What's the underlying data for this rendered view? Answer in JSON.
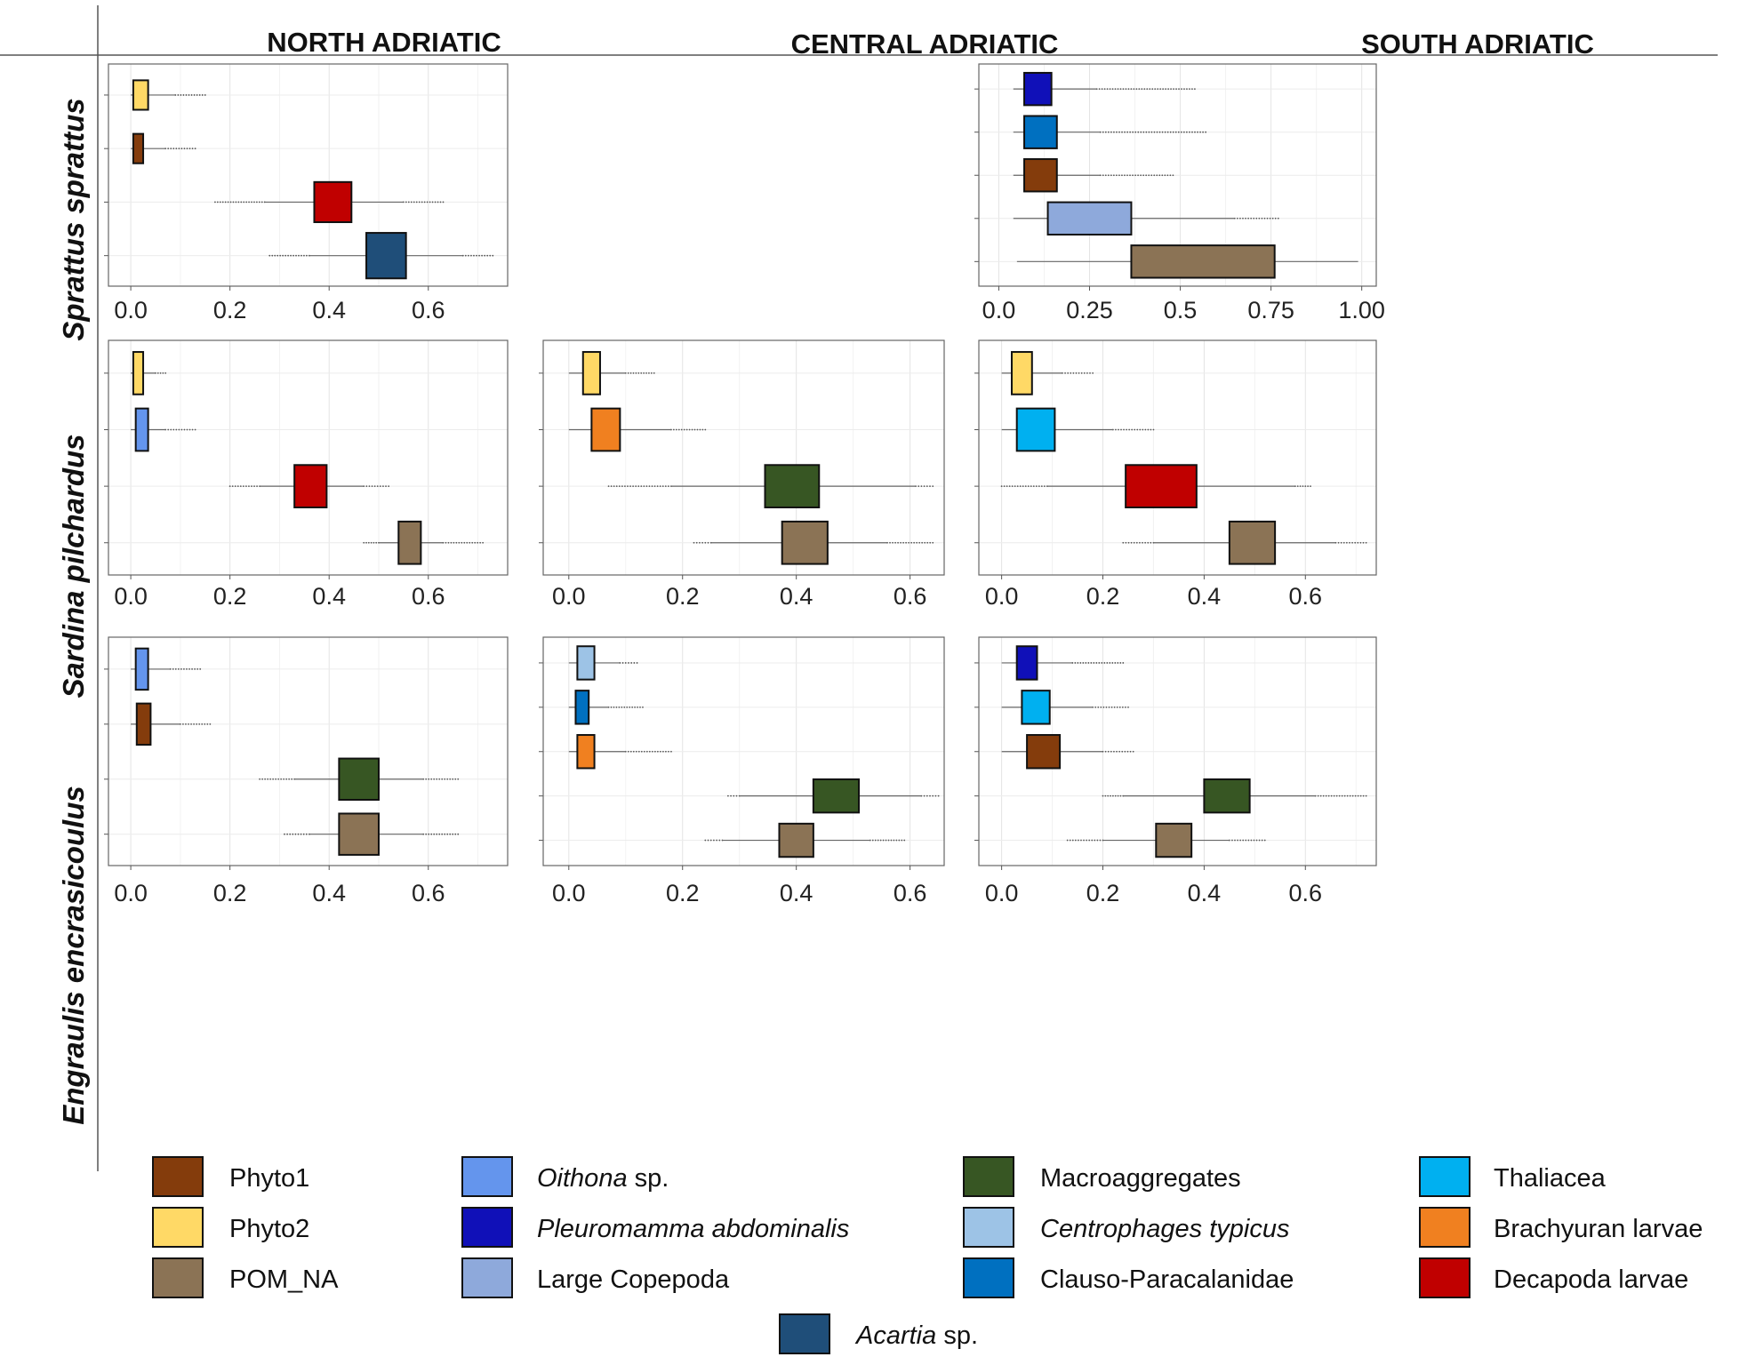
{
  "column_headers": [
    "NORTH ADRIATIC",
    "CENTRAL ADRIATIC",
    "SOUTH ADRIATIC"
  ],
  "row_labels": [
    "Sprattus sprattus",
    "Sardina pilchardus",
    "Engraulis encrasicoulus"
  ],
  "colors": {
    "Phyto1": "#843C0C",
    "Phyto2": "#FFD966",
    "POM_NA": "#8B7355",
    "Oithona": "#6495ED",
    "Pleuromamma": "#1010B8",
    "LargeCopepoda": "#8EA9DB",
    "Macroaggregates": "#375623",
    "Centrophages": "#9DC3E6",
    "Clauso": "#0070C0",
    "Thaliacea": "#00B0F0",
    "Brachyuran": "#F08020",
    "Decapoda": "#C00000",
    "Acartia": "#1F4E79"
  },
  "legend": [
    {
      "key": "Phyto1",
      "parts": [
        {
          "t": "Phyto1",
          "i": false
        }
      ]
    },
    {
      "key": "Phyto2",
      "parts": [
        {
          "t": "Phyto2",
          "i": false
        }
      ]
    },
    {
      "key": "POM_NA",
      "parts": [
        {
          "t": "POM_NA",
          "i": false
        }
      ]
    },
    {
      "key": "Oithona",
      "parts": [
        {
          "t": "Oithona",
          "i": true
        },
        {
          "t": " sp.",
          "i": false
        }
      ]
    },
    {
      "key": "Pleuromamma",
      "parts": [
        {
          "t": "Pleuromamma abdominalis",
          "i": true
        }
      ]
    },
    {
      "key": "LargeCopepoda",
      "parts": [
        {
          "t": "Large Copepoda",
          "i": false
        }
      ]
    },
    {
      "key": "Macroaggregates",
      "parts": [
        {
          "t": "Macroaggregates",
          "i": false
        }
      ]
    },
    {
      "key": "Centrophages",
      "parts": [
        {
          "t": "Centrophages typicus",
          "i": true
        }
      ]
    },
    {
      "key": "Clauso",
      "parts": [
        {
          "t": "Clauso-Paracalanidae",
          "i": false
        }
      ]
    },
    {
      "key": "Thaliacea",
      "parts": [
        {
          "t": "Thaliacea",
          "i": false
        }
      ]
    },
    {
      "key": "Brachyuran",
      "parts": [
        {
          "t": "Brachyuran larvae",
          "i": false
        }
      ]
    },
    {
      "key": "Decapoda",
      "parts": [
        {
          "t": "Decapoda larvae",
          "i": false
        }
      ]
    },
    {
      "key": "Acartia",
      "parts": [
        {
          "t": "Acartia",
          "i": true
        },
        {
          "t": " sp.",
          "i": false
        }
      ]
    }
  ],
  "chart_data": [
    {
      "type": "box",
      "region": "NORTH ADRIATIC",
      "species": "Sprattus sprattus",
      "xlim": [
        -0.045,
        0.76
      ],
      "xticks": [
        0.0,
        0.2,
        0.4,
        0.6
      ],
      "xtick_labels": [
        "0.0",
        "0.2",
        "0.4",
        "0.6"
      ],
      "boxes": [
        {
          "source": "Phyto2",
          "wmin": 0.0,
          "q1": 0.005,
          "q3": 0.035,
          "wmax": 0.09,
          "outmax": 0.15,
          "size": 0.55
        },
        {
          "source": "Phyto1",
          "wmin": 0.0,
          "q1": 0.005,
          "q3": 0.025,
          "wmax": 0.07,
          "outmax": 0.13,
          "size": 0.55
        },
        {
          "source": "Decapoda",
          "wmin": 0.27,
          "q1": 0.37,
          "q3": 0.445,
          "wmax": 0.55,
          "outmin": 0.17,
          "outmax": 0.63,
          "size": 0.75
        },
        {
          "source": "Acartia",
          "wmin": 0.36,
          "q1": 0.475,
          "q3": 0.555,
          "wmax": 0.67,
          "outmin": 0.28,
          "outmax": 0.73,
          "size": 0.85
        }
      ]
    },
    null,
    {
      "type": "box",
      "region": "SOUTH ADRIATIC",
      "species": "Sprattus sprattus",
      "xlim": [
        -0.055,
        1.04
      ],
      "xticks": [
        0.0,
        0.25,
        0.5,
        0.75,
        1.0
      ],
      "xtick_labels": [
        "0.0",
        "0.25",
        "0.5",
        "0.75",
        "1.00"
      ],
      "boxes": [
        {
          "source": "Pleuromamma",
          "wmin": 0.04,
          "q1": 0.07,
          "q3": 0.145,
          "wmax": 0.27,
          "outmax": 0.54,
          "size": 0.75
        },
        {
          "source": "Clauso",
          "wmin": 0.04,
          "q1": 0.07,
          "q3": 0.16,
          "wmax": 0.28,
          "outmax": 0.57,
          "size": 0.75
        },
        {
          "source": "Phyto1",
          "wmin": 0.04,
          "q1": 0.07,
          "q3": 0.16,
          "wmax": 0.28,
          "outmax": 0.48,
          "size": 0.75
        },
        {
          "source": "LargeCopepoda",
          "wmin": 0.04,
          "q1": 0.135,
          "q3": 0.365,
          "wmax": 0.65,
          "outmax": 0.77,
          "size": 0.75
        },
        {
          "source": "POM_NA",
          "wmin": 0.05,
          "q1": 0.365,
          "q3": 0.76,
          "wmax": 0.99,
          "size": 0.75
        }
      ]
    },
    {
      "type": "box",
      "region": "NORTH ADRIATIC",
      "species": "Sardina pilchardus",
      "xlim": [
        -0.045,
        0.76
      ],
      "xticks": [
        0.0,
        0.2,
        0.4,
        0.6
      ],
      "xtick_labels": [
        "0.0",
        "0.2",
        "0.4",
        "0.6"
      ],
      "boxes": [
        {
          "source": "Phyto2",
          "wmin": 0.0,
          "q1": 0.005,
          "q3": 0.025,
          "wmax": 0.05,
          "outmax": 0.07,
          "size": 0.75
        },
        {
          "source": "Oithona",
          "wmin": 0.0,
          "q1": 0.01,
          "q3": 0.035,
          "wmax": 0.07,
          "outmax": 0.13,
          "size": 0.75
        },
        {
          "source": "Decapoda",
          "wmin": 0.26,
          "q1": 0.33,
          "q3": 0.395,
          "wmax": 0.47,
          "outmin": 0.2,
          "outmax": 0.52,
          "size": 0.75
        },
        {
          "source": "POM_NA",
          "wmin": 0.5,
          "q1": 0.54,
          "q3": 0.585,
          "wmax": 0.63,
          "outmin": 0.47,
          "outmax": 0.71,
          "size": 0.75
        }
      ]
    },
    {
      "type": "box",
      "region": "CENTRAL ADRIATIC",
      "species": "Sardina pilchardus",
      "xlim": [
        -0.045,
        0.66
      ],
      "xticks": [
        0.0,
        0.2,
        0.4,
        0.6
      ],
      "xtick_labels": [
        "0.0",
        "0.2",
        "0.4",
        "0.6"
      ],
      "boxes": [
        {
          "source": "Phyto2",
          "wmin": 0.0,
          "q1": 0.025,
          "q3": 0.055,
          "wmax": 0.1,
          "outmax": 0.15,
          "size": 0.75
        },
        {
          "source": "Brachyuran",
          "wmin": 0.0,
          "q1": 0.04,
          "q3": 0.09,
          "wmax": 0.18,
          "outmax": 0.24,
          "size": 0.75
        },
        {
          "source": "Macroaggregates",
          "wmin": 0.18,
          "q1": 0.345,
          "q3": 0.44,
          "wmax": 0.61,
          "outmin": 0.07,
          "outmax": 0.64,
          "size": 0.75
        },
        {
          "source": "POM_NA",
          "wmin": 0.25,
          "q1": 0.375,
          "q3": 0.455,
          "wmax": 0.56,
          "outmin": 0.22,
          "outmax": 0.64,
          "size": 0.75
        }
      ]
    },
    {
      "type": "box",
      "region": "SOUTH ADRIATIC",
      "species": "Sardina pilchardus",
      "xlim": [
        -0.045,
        0.74
      ],
      "xticks": [
        0.0,
        0.2,
        0.4,
        0.6
      ],
      "xtick_labels": [
        "0.0",
        "0.2",
        "0.4",
        "0.6"
      ],
      "boxes": [
        {
          "source": "Phyto2",
          "wmin": 0.0,
          "q1": 0.02,
          "q3": 0.06,
          "wmax": 0.12,
          "outmax": 0.18,
          "size": 0.75
        },
        {
          "source": "Thaliacea",
          "wmin": 0.0,
          "q1": 0.03,
          "q3": 0.105,
          "wmax": 0.22,
          "outmax": 0.3,
          "size": 0.75
        },
        {
          "source": "Decapoda",
          "wmin": 0.09,
          "q1": 0.245,
          "q3": 0.385,
          "wmax": 0.58,
          "outmin": 0.0,
          "outmax": 0.61,
          "size": 0.75
        },
        {
          "source": "POM_NA",
          "wmin": 0.3,
          "q1": 0.45,
          "q3": 0.54,
          "wmax": 0.66,
          "outmin": 0.24,
          "outmax": 0.72,
          "size": 0.75
        }
      ]
    },
    {
      "type": "box",
      "region": "NORTH ADRIATIC",
      "species": "Engraulis encrasicoulus",
      "xlim": [
        -0.045,
        0.76
      ],
      "xticks": [
        0.0,
        0.2,
        0.4,
        0.6
      ],
      "xtick_labels": [
        "0.0",
        "0.2",
        "0.4",
        "0.6"
      ],
      "boxes": [
        {
          "source": "Oithona",
          "wmin": 0.0,
          "q1": 0.01,
          "q3": 0.035,
          "wmax": 0.08,
          "outmax": 0.14,
          "size": 0.75
        },
        {
          "source": "Phyto1",
          "wmin": 0.0,
          "q1": 0.012,
          "q3": 0.04,
          "wmax": 0.1,
          "outmax": 0.16,
          "size": 0.75
        },
        {
          "source": "Macroaggregates",
          "wmin": 0.33,
          "q1": 0.42,
          "q3": 0.5,
          "wmax": 0.59,
          "outmin": 0.26,
          "outmax": 0.66,
          "size": 0.75
        },
        {
          "source": "POM_NA",
          "wmin": 0.36,
          "q1": 0.42,
          "q3": 0.5,
          "wmax": 0.59,
          "outmin": 0.31,
          "outmax": 0.66,
          "size": 0.75
        }
      ]
    },
    {
      "type": "box",
      "region": "CENTRAL ADRIATIC",
      "species": "Engraulis encrasicoulus",
      "xlim": [
        -0.045,
        0.66
      ],
      "xticks": [
        0.0,
        0.2,
        0.4,
        0.6
      ],
      "xtick_labels": [
        "0.0",
        "0.2",
        "0.4",
        "0.6"
      ],
      "boxes": [
        {
          "source": "Centrophages",
          "wmin": 0.0,
          "q1": 0.015,
          "q3": 0.045,
          "wmax": 0.09,
          "outmax": 0.12,
          "size": 0.75
        },
        {
          "source": "Clauso",
          "wmin": 0.0,
          "q1": 0.012,
          "q3": 0.035,
          "wmax": 0.07,
          "outmax": 0.13,
          "size": 0.75
        },
        {
          "source": "Brachyuran",
          "wmin": 0.0,
          "q1": 0.015,
          "q3": 0.045,
          "wmax": 0.1,
          "outmax": 0.18,
          "size": 0.75
        },
        {
          "source": "Macroaggregates",
          "wmin": 0.3,
          "q1": 0.43,
          "q3": 0.51,
          "wmax": 0.62,
          "outmin": 0.28,
          "outmax": 0.65,
          "size": 0.75
        },
        {
          "source": "POM_NA",
          "wmin": 0.27,
          "q1": 0.37,
          "q3": 0.43,
          "wmax": 0.53,
          "outmin": 0.24,
          "outmax": 0.59,
          "size": 0.75
        }
      ]
    },
    {
      "type": "box",
      "region": "SOUTH ADRIATIC",
      "species": "Engraulis encrasicoulus",
      "xlim": [
        -0.045,
        0.74
      ],
      "xticks": [
        0.0,
        0.2,
        0.4,
        0.6
      ],
      "xtick_labels": [
        "0.0",
        "0.2",
        "0.4",
        "0.6"
      ],
      "boxes": [
        {
          "source": "Pleuromamma",
          "wmin": 0.0,
          "q1": 0.03,
          "q3": 0.07,
          "wmax": 0.14,
          "outmax": 0.24,
          "size": 0.75
        },
        {
          "source": "Thaliacea",
          "wmin": 0.0,
          "q1": 0.04,
          "q3": 0.095,
          "wmax": 0.18,
          "outmax": 0.25,
          "size": 0.75
        },
        {
          "source": "Phyto1",
          "wmin": 0.0,
          "q1": 0.05,
          "q3": 0.115,
          "wmax": 0.2,
          "outmax": 0.26,
          "size": 0.75
        },
        {
          "source": "Macroaggregates",
          "wmin": 0.24,
          "q1": 0.4,
          "q3": 0.49,
          "wmax": 0.62,
          "outmin": 0.2,
          "outmax": 0.72,
          "size": 0.75
        },
        {
          "source": "POM_NA",
          "wmin": 0.2,
          "q1": 0.305,
          "q3": 0.375,
          "wmax": 0.45,
          "outmin": 0.13,
          "outmax": 0.52,
          "size": 0.75
        }
      ]
    }
  ]
}
